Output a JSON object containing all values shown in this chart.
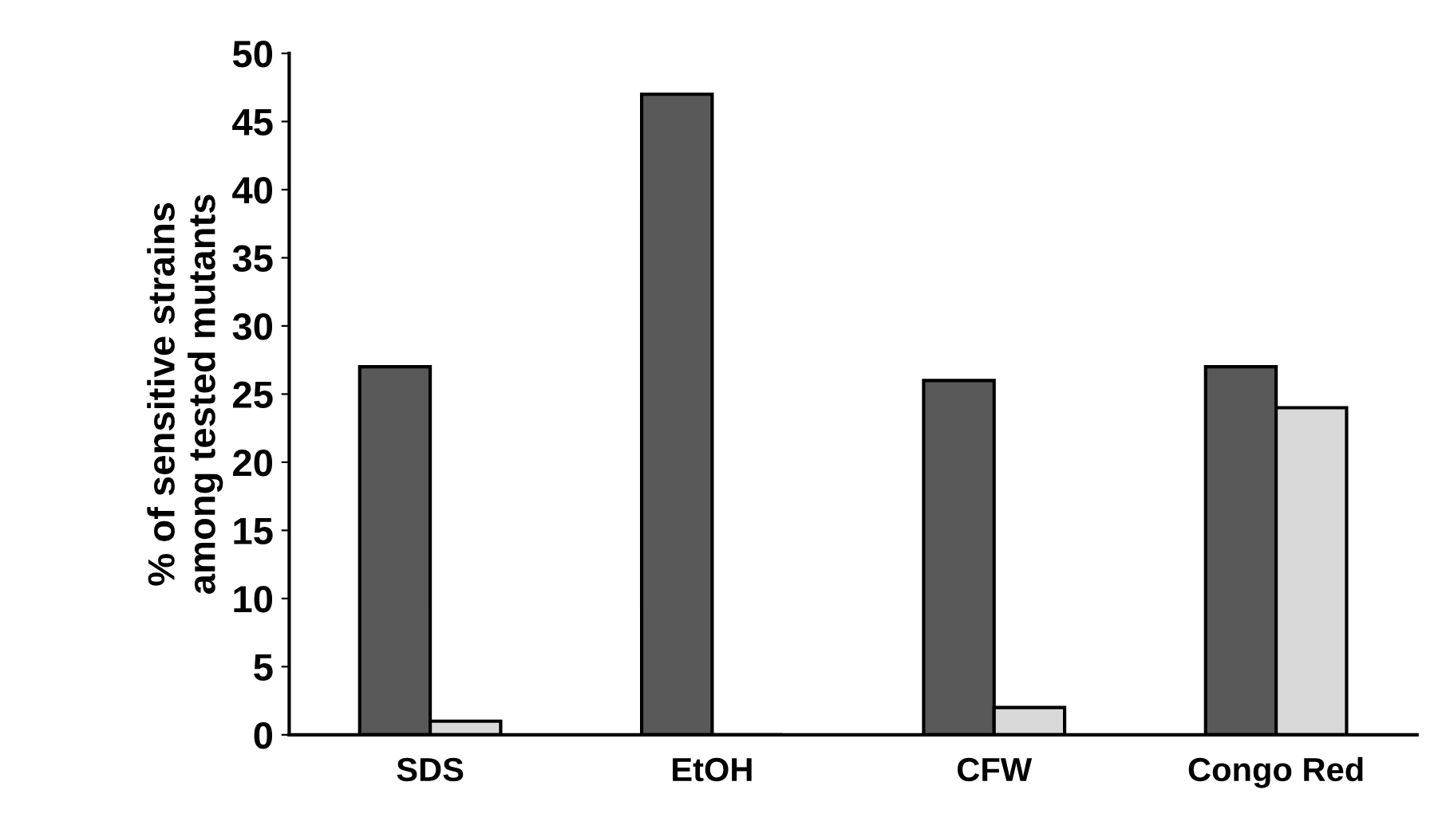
{
  "chart_data": {
    "type": "bar",
    "ylabel": "% of sensitive strains\namong tested mutants",
    "categories": [
      "SDS",
      "EtOH",
      "CFW",
      "Congo Red"
    ],
    "series": [
      {
        "color": "#595959",
        "values": [
          27,
          47,
          26,
          27
        ]
      },
      {
        "color": "#d9d9d9",
        "values": [
          1,
          0,
          2,
          24
        ]
      }
    ],
    "ylim": [
      0,
      50
    ],
    "yticks": [
      0,
      5,
      10,
      15,
      20,
      25,
      30,
      35,
      40,
      45,
      50
    ],
    "grid": false,
    "legend": false
  }
}
